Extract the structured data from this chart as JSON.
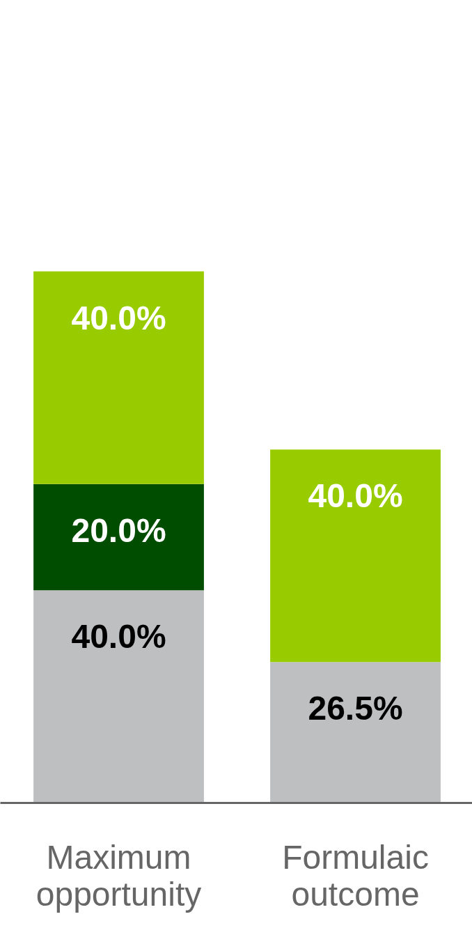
{
  "chart_data": {
    "type": "bar",
    "stacked": true,
    "categories": [
      "Maximum opportunity",
      "Formulaic outcome"
    ],
    "series": [
      {
        "color": "#bebfc1",
        "values": [
          40.0,
          26.5
        ],
        "value_labels": [
          "40.0%",
          "26.5%"
        ]
      },
      {
        "color": "#004d00",
        "values": [
          20.0,
          null
        ],
        "value_labels": [
          "20.0%",
          null
        ]
      },
      {
        "color": "#99cc00",
        "values": [
          40.0,
          40.0
        ],
        "value_labels": [
          "40.0%",
          "40.0%"
        ]
      }
    ],
    "tick_labels": "x",
    "grid": false
  }
}
